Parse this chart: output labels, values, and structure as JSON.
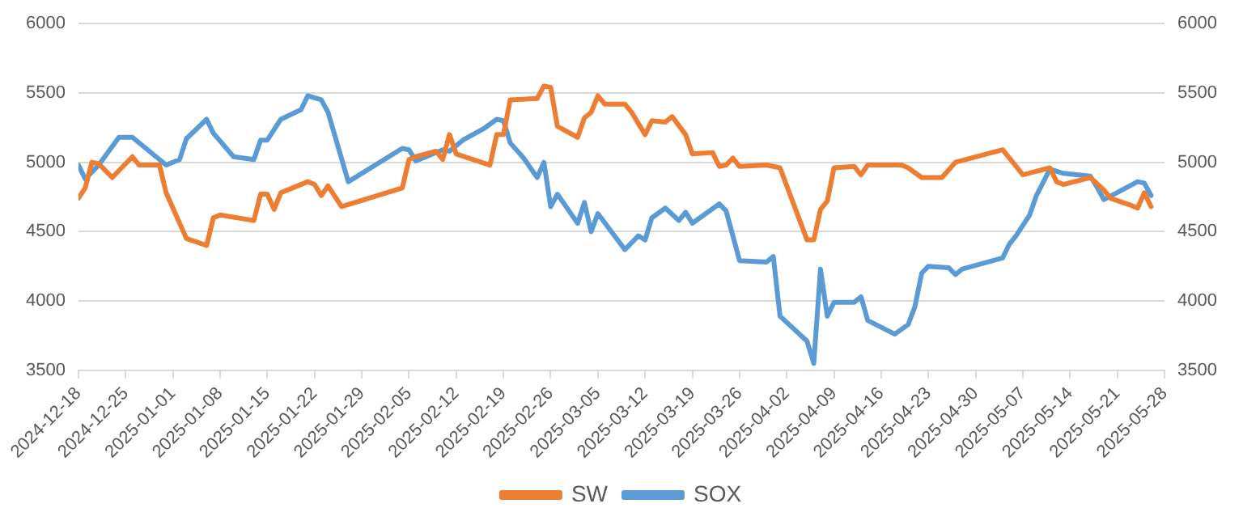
{
  "chart_data": {
    "type": "line",
    "xlim": [
      "2024-12-18",
      "2025-05-28"
    ],
    "xticks": [
      "2024-12-18",
      "2024-12-25",
      "2025-01-01",
      "2025-01-08",
      "2025-01-15",
      "2025-01-22",
      "2025-01-29",
      "2025-02-05",
      "2025-02-12",
      "2025-02-19",
      "2025-02-26",
      "2025-03-05",
      "2025-03-12",
      "2025-03-19",
      "2025-03-26",
      "2025-04-02",
      "2025-04-09",
      "2025-04-16",
      "2025-04-23",
      "2025-04-30",
      "2025-05-07",
      "2025-05-14",
      "2025-05-21",
      "2025-05-28"
    ],
    "ylim": [
      3500,
      6000
    ],
    "yticks": [
      3500,
      4000,
      4500,
      5000,
      5500,
      6000
    ],
    "y2lim": [
      3500,
      6000
    ],
    "y2ticks": [
      3500,
      4000,
      4500,
      5000,
      5500,
      6000
    ],
    "grid": "y",
    "legend": "bottom",
    "marker": "none",
    "line_style": "solid",
    "series": [
      {
        "name": "SW",
        "color": "#ed7d31",
        "x": [
          "2024-12-18",
          "2024-12-19",
          "2024-12-20",
          "2024-12-21",
          "2024-12-23",
          "2024-12-26",
          "2024-12-27",
          "2024-12-30",
          "2024-12-31",
          "2025-01-03",
          "2025-01-06",
          "2025-01-07",
          "2025-01-08",
          "2025-01-13",
          "2025-01-14",
          "2025-01-15",
          "2025-01-16",
          "2025-01-17",
          "2025-01-21",
          "2025-01-22",
          "2025-01-23",
          "2025-01-24",
          "2025-01-26",
          "2025-02-04",
          "2025-02-05",
          "2025-02-06",
          "2025-02-09",
          "2025-02-10",
          "2025-02-11",
          "2025-02-12",
          "2025-02-17",
          "2025-02-18",
          "2025-02-19",
          "2025-02-20",
          "2025-02-24",
          "2025-02-25",
          "2025-02-26",
          "2025-02-27",
          "2025-03-02",
          "2025-03-03",
          "2025-03-04",
          "2025-03-05",
          "2025-03-06",
          "2025-03-09",
          "2025-03-10",
          "2025-03-12",
          "2025-03-13",
          "2025-03-15",
          "2025-03-16",
          "2025-03-18",
          "2025-03-19",
          "2025-03-22",
          "2025-03-23",
          "2025-03-24",
          "2025-03-25",
          "2025-03-26",
          "2025-03-30",
          "2025-04-01",
          "2025-04-05",
          "2025-04-06",
          "2025-04-07",
          "2025-04-08",
          "2025-04-09",
          "2025-04-12",
          "2025-04-13",
          "2025-04-14",
          "2025-04-19",
          "2025-04-20",
          "2025-04-22",
          "2025-04-25",
          "2025-04-27",
          "2025-05-04",
          "2025-05-05",
          "2025-05-07",
          "2025-05-11",
          "2025-05-12",
          "2025-05-13",
          "2025-05-17",
          "2025-05-19",
          "2025-05-20",
          "2025-05-23",
          "2025-05-24",
          "2025-05-25",
          "2025-05-26"
        ],
        "values": [
          4740,
          4815,
          5000,
          4990,
          4890,
          5040,
          4980,
          4980,
          4780,
          4450,
          4400,
          4600,
          4620,
          4580,
          4770,
          4770,
          4660,
          4780,
          4860,
          4840,
          4760,
          4830,
          4680,
          4815,
          5020,
          5040,
          5080,
          5020,
          5200,
          5060,
          4980,
          5200,
          5200,
          5450,
          5460,
          5550,
          5540,
          5260,
          5180,
          5320,
          5360,
          5480,
          5420,
          5420,
          5360,
          5200,
          5300,
          5290,
          5330,
          5200,
          5060,
          5070,
          4970,
          4980,
          5030,
          4970,
          4980,
          4960,
          4440,
          4440,
          4660,
          4720,
          4960,
          4970,
          4910,
          4980,
          4980,
          4960,
          4890,
          4890,
          5000,
          5090,
          5030,
          4910,
          4960,
          4860,
          4840,
          4890,
          4800,
          4740,
          4690,
          4670,
          4780,
          4680
        ]
      },
      {
        "name": "SOX",
        "color": "#5b9bd5",
        "x": [
          "2024-12-18",
          "2024-12-19",
          "2024-12-21",
          "2024-12-24",
          "2024-12-26",
          "2024-12-31",
          "2025-01-02",
          "2025-01-03",
          "2025-01-06",
          "2025-01-07",
          "2025-01-10",
          "2025-01-13",
          "2025-01-14",
          "2025-01-15",
          "2025-01-17",
          "2025-01-20",
          "2025-01-21",
          "2025-01-23",
          "2025-01-24",
          "2025-01-27",
          "2025-02-04",
          "2025-02-05",
          "2025-02-06",
          "2025-02-10",
          "2025-02-11",
          "2025-02-13",
          "2025-02-16",
          "2025-02-18",
          "2025-02-19",
          "2025-02-20",
          "2025-02-22",
          "2025-02-24",
          "2025-02-25",
          "2025-02-26",
          "2025-02-27",
          "2025-03-02",
          "2025-03-03",
          "2025-03-04",
          "2025-03-05",
          "2025-03-09",
          "2025-03-11",
          "2025-03-12",
          "2025-03-13",
          "2025-03-15",
          "2025-03-17",
          "2025-03-18",
          "2025-03-19",
          "2025-03-23",
          "2025-03-24",
          "2025-03-26",
          "2025-03-30",
          "2025-03-31",
          "2025-04-01",
          "2025-04-05",
          "2025-04-06",
          "2025-04-07",
          "2025-04-08",
          "2025-04-09",
          "2025-04-12",
          "2025-04-13",
          "2025-04-14",
          "2025-04-18",
          "2025-04-20",
          "2025-04-21",
          "2025-04-22",
          "2025-04-23",
          "2025-04-26",
          "2025-04-27",
          "2025-04-28",
          "2025-05-04",
          "2025-05-05",
          "2025-05-06",
          "2025-05-08",
          "2025-05-09",
          "2025-05-11",
          "2025-05-13",
          "2025-05-17",
          "2025-05-18",
          "2025-05-19",
          "2025-05-24",
          "2025-05-25",
          "2025-05-26"
        ],
        "values": [
          4980,
          4880,
          4980,
          5180,
          5180,
          4980,
          5020,
          5170,
          5310,
          5210,
          5040,
          5020,
          5160,
          5160,
          5310,
          5380,
          5480,
          5450,
          5360,
          4860,
          5100,
          5090,
          5010,
          5090,
          5080,
          5160,
          5240,
          5310,
          5300,
          5140,
          5030,
          4890,
          5000,
          4680,
          4770,
          4560,
          4710,
          4500,
          4630,
          4370,
          4470,
          4440,
          4600,
          4670,
          4580,
          4640,
          4560,
          4700,
          4650,
          4290,
          4280,
          4320,
          3890,
          3710,
          3550,
          4230,
          3890,
          3990,
          3990,
          4030,
          3860,
          3760,
          3830,
          3960,
          4200,
          4250,
          4240,
          4190,
          4230,
          4310,
          4410,
          4470,
          4620,
          4760,
          4950,
          4920,
          4900,
          4820,
          4730,
          4860,
          4850,
          4760
        ]
      }
    ]
  }
}
